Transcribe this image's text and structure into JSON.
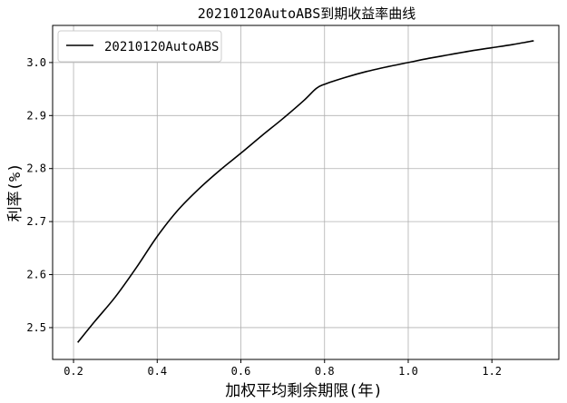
{
  "chart_data": {
    "type": "line",
    "title": "20210120AutoABS到期收益率曲线",
    "xlabel": "加权平均剩余期限(年)",
    "ylabel": "利率(%)",
    "xlim": [
      0.15,
      1.36
    ],
    "ylim": [
      2.44,
      3.07
    ],
    "xticks": [
      "0.2",
      "0.4",
      "0.6",
      "0.8",
      "1.0",
      "1.2"
    ],
    "yticks": [
      "2.5",
      "2.6",
      "2.7",
      "2.8",
      "2.9",
      "3.0"
    ],
    "grid": true,
    "legend_position": "top-left",
    "series": [
      {
        "name": "20210120AutoABS",
        "color": "#000000",
        "x": [
          0.21,
          0.25,
          0.3,
          0.35,
          0.4,
          0.45,
          0.5,
          0.55,
          0.6,
          0.65,
          0.7,
          0.75,
          0.78,
          0.8,
          0.85,
          0.9,
          0.95,
          1.0,
          1.05,
          1.1,
          1.15,
          1.2,
          1.25,
          1.3
        ],
        "y": [
          2.472,
          2.511,
          2.558,
          2.613,
          2.672,
          2.722,
          2.762,
          2.797,
          2.829,
          2.862,
          2.894,
          2.928,
          2.951,
          2.959,
          2.972,
          2.983,
          2.992,
          3.0,
          3.008,
          3.015,
          3.022,
          3.028,
          3.034,
          3.041
        ]
      }
    ]
  }
}
